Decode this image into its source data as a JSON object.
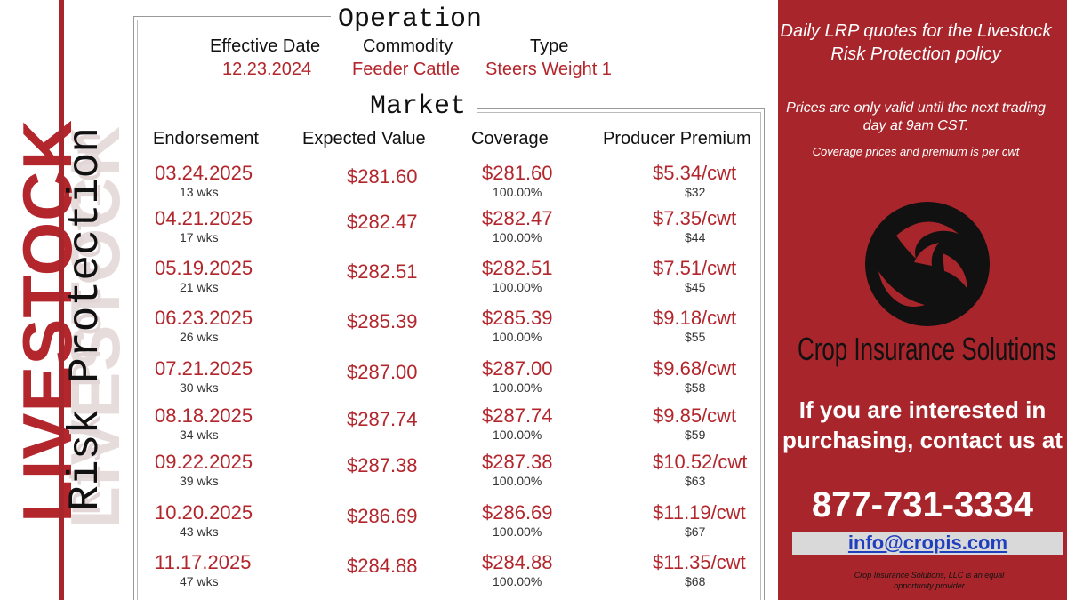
{
  "branding": {
    "title_main": "LIVESTOCK",
    "title_sub": "Risk Protection"
  },
  "operation": {
    "title": "Operation",
    "effective_date_label": "Effective Date",
    "effective_date": "12.23.2024",
    "commodity_label": "Commodity",
    "commodity": "Feeder Cattle",
    "type_label": "Type",
    "type": "Steers Weight 1"
  },
  "market": {
    "title": "Market",
    "headers": {
      "endorsement": "Endorsement",
      "expected_value": "Expected Value",
      "coverage": "Coverage",
      "producer_premium": "Producer Premium"
    },
    "rows": [
      {
        "date": "03.24.2025",
        "weeks": "13 wks",
        "expected_value": "$281.60",
        "coverage": "$281.60",
        "coverage_pct": "100.00%",
        "premium_cwt": "$5.34/cwt",
        "premium_total": "$32"
      },
      {
        "date": "04.21.2025",
        "weeks": "17 wks",
        "expected_value": "$282.47",
        "coverage": "$282.47",
        "coverage_pct": "100.00%",
        "premium_cwt": "$7.35/cwt",
        "premium_total": "$44"
      },
      {
        "date": "05.19.2025",
        "weeks": "21 wks",
        "expected_value": "$282.51",
        "coverage": "$282.51",
        "coverage_pct": "100.00%",
        "premium_cwt": "$7.51/cwt",
        "premium_total": "$45"
      },
      {
        "date": "06.23.2025",
        "weeks": "26 wks",
        "expected_value": "$285.39",
        "coverage": "$285.39",
        "coverage_pct": "100.00%",
        "premium_cwt": "$9.18/cwt",
        "premium_total": "$55"
      },
      {
        "date": "07.21.2025",
        "weeks": "30 wks",
        "expected_value": "$287.00",
        "coverage": "$287.00",
        "coverage_pct": "100.00%",
        "premium_cwt": "$9.68/cwt",
        "premium_total": "$58"
      },
      {
        "date": "08.18.2025",
        "weeks": "34 wks",
        "expected_value": "$287.74",
        "coverage": "$287.74",
        "coverage_pct": "100.00%",
        "premium_cwt": "$9.85/cwt",
        "premium_total": "$59"
      },
      {
        "date": "09.22.2025",
        "weeks": "39 wks",
        "expected_value": "$287.38",
        "coverage": "$287.38",
        "coverage_pct": "100.00%",
        "premium_cwt": "$10.52/cwt",
        "premium_total": "$63"
      },
      {
        "date": "10.20.2025",
        "weeks": "43 wks",
        "expected_value": "$286.69",
        "coverage": "$286.69",
        "coverage_pct": "100.00%",
        "premium_cwt": "$11.19/cwt",
        "premium_total": "$67"
      },
      {
        "date": "11.17.2025",
        "weeks": "47 wks",
        "expected_value": "$284.88",
        "coverage": "$284.88",
        "coverage_pct": "100.00%",
        "premium_cwt": "$11.35/cwt",
        "premium_total": "$68"
      }
    ]
  },
  "sidebar": {
    "intro": "Daily LRP quotes for the Livestock Risk Protection policy",
    "validity_note": "Prices are only valid until the next trading day at 9am CST.",
    "unit_note": "Coverage prices and premium is per cwt",
    "logo_icon": "crop-insurance-logo-icon",
    "company_name": "Crop Insurance Solutions",
    "cta": "If you are interested in purchasing, contact us at",
    "phone": "877-731-3334",
    "email": "info@cropis.com",
    "eo_statement": "Crop Insurance Solutions, LLC is an equal opportunity provider"
  },
  "colors": {
    "brand_red": "#a8262b",
    "value_red": "#b3262c",
    "email_blue": "#1f3fbf"
  }
}
